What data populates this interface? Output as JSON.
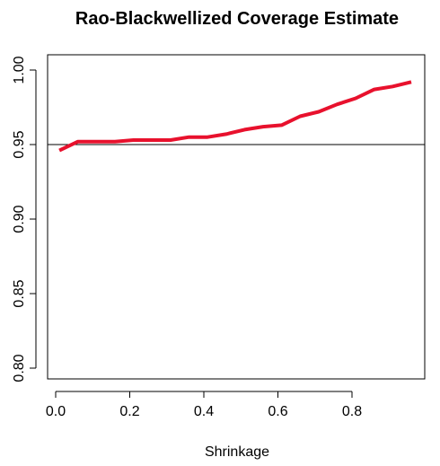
{
  "chart_data": {
    "type": "line",
    "title": "Rao-Blackwellized Coverage Estimate",
    "xlabel": "Shrinkage",
    "ylabel": "",
    "xlim": [
      0,
      1
    ],
    "ylim": [
      0.8,
      1.0
    ],
    "x_ticks": [
      0.0,
      0.2,
      0.4,
      0.6,
      0.8
    ],
    "x_tick_labels": [
      "0.0",
      "0.2",
      "0.4",
      "0.6",
      "0.8"
    ],
    "y_ticks": [
      0.8,
      0.85,
      0.9,
      0.95,
      1.0
    ],
    "y_tick_labels": [
      "0.80",
      "0.85",
      "0.90",
      "0.95",
      "1.00"
    ],
    "reference_line": {
      "y": 0.95,
      "color": "#000000"
    },
    "series": [
      {
        "color": "#e8112d",
        "x": [
          0.01,
          0.06,
          0.11,
          0.16,
          0.21,
          0.26,
          0.31,
          0.36,
          0.41,
          0.46,
          0.51,
          0.56,
          0.61,
          0.66,
          0.71,
          0.76,
          0.81,
          0.86,
          0.91,
          0.96
        ],
        "y": [
          0.946,
          0.952,
          0.952,
          0.952,
          0.953,
          0.953,
          0.953,
          0.955,
          0.955,
          0.957,
          0.96,
          0.962,
          0.963,
          0.969,
          0.972,
          0.977,
          0.981,
          0.987,
          0.989,
          0.992
        ]
      }
    ],
    "grid": false,
    "legend": "none"
  }
}
